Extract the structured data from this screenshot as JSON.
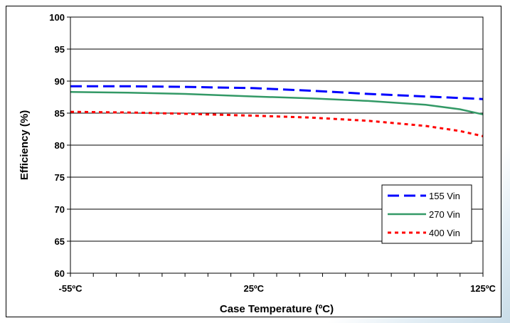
{
  "chart_data": {
    "type": "line",
    "xlabel": "Case Temperature (ºC)",
    "ylabel": "Efficiency (%)",
    "xlim": [
      -55,
      125
    ],
    "ylim": [
      60,
      100
    ],
    "yticks": [
      60,
      65,
      70,
      75,
      80,
      85,
      90,
      95,
      100
    ],
    "xticks": [
      {
        "value": -55,
        "label": "-55ºC"
      },
      {
        "value": 25,
        "label": "25ºC"
      },
      {
        "value": 125,
        "label": "125ºC"
      }
    ],
    "grid": true,
    "legend_position": "bottom-right",
    "series": [
      {
        "name": "155 Vin",
        "color": "#0000ff",
        "style": "dashed",
        "x": [
          -55,
          -30,
          -5,
          25,
          50,
          75,
          100,
          125
        ],
        "y": [
          89.2,
          89.2,
          89.1,
          88.9,
          88.5,
          88.0,
          87.6,
          87.2
        ]
      },
      {
        "name": "270 Vin",
        "color": "#339966",
        "style": "solid",
        "x": [
          -55,
          -30,
          -5,
          25,
          50,
          75,
          100,
          115,
          125
        ],
        "y": [
          88.3,
          88.2,
          88.0,
          87.6,
          87.3,
          86.9,
          86.3,
          85.6,
          84.8
        ]
      },
      {
        "name": "400 Vin",
        "color": "#ff0000",
        "style": "dotted",
        "x": [
          -55,
          -30,
          -5,
          25,
          50,
          75,
          100,
          115,
          125
        ],
        "y": [
          85.2,
          85.1,
          84.9,
          84.6,
          84.3,
          83.8,
          83.0,
          82.2,
          81.4
        ]
      }
    ]
  }
}
